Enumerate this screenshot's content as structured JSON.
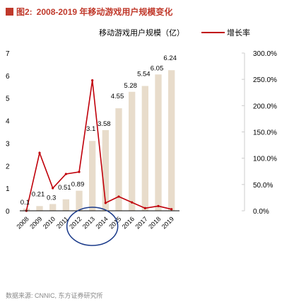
{
  "header": {
    "figure_label": "图2:",
    "title": "2008-2019 年移动游戏用户规模变化"
  },
  "source": "数据来源: CNNIC, 东方证券研究所",
  "colors": {
    "bar": "#e8dccb",
    "line": "#c0000a",
    "title": "#c0392b",
    "highlight_circle": "#1a3a8a"
  },
  "chart_data": {
    "type": "bar",
    "categories": [
      "2008",
      "2009",
      "2010",
      "2011",
      "2012",
      "2013",
      "2014",
      "2015",
      "2016",
      "2017",
      "2018",
      "2019"
    ],
    "series": [
      {
        "name": "移动游戏用户规模（亿）",
        "type": "bar",
        "axis": "left",
        "values": [
          0.1,
          0.21,
          0.3,
          0.51,
          0.89,
          3.1,
          3.58,
          4.55,
          5.28,
          5.54,
          6.05,
          6.24
        ],
        "labels": [
          "0.1",
          "0.21",
          "0.3",
          "0.51",
          "0.89",
          "3.1",
          "3.58",
          "4.55",
          "5.28",
          "5.54",
          "6.05",
          "6.24"
        ]
      },
      {
        "name": "增长率",
        "type": "line",
        "axis": "right",
        "values": [
          0,
          1.1,
          0.43,
          0.7,
          0.74,
          2.48,
          0.15,
          0.27,
          0.16,
          0.05,
          0.09,
          0.03
        ]
      }
    ],
    "ylim_left": [
      0,
      7
    ],
    "yticks_left": [
      "0",
      "1",
      "2",
      "3",
      "4",
      "5",
      "6",
      "7"
    ],
    "ylim_right": [
      0,
      3
    ],
    "yticks_right": [
      "0.0%",
      "50.0%",
      "100.0%",
      "150.0%",
      "200.0%",
      "250.0%",
      "300.0%"
    ],
    "legend": {
      "position": "top",
      "bar_label": "移动游戏用户规模（亿）",
      "line_label": "增长率"
    },
    "annotation": "circle around 2012-2014",
    "grid": false
  }
}
